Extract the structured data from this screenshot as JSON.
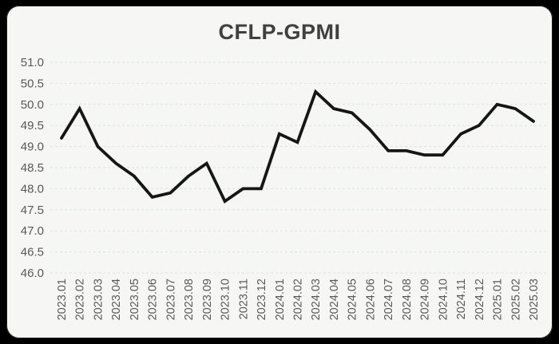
{
  "window": {
    "background_color": "#000000",
    "card_color": "#f6f6f4"
  },
  "chart_data": {
    "type": "line",
    "title": "CFLP-GPMI",
    "categories": [
      "2023.01",
      "2023.02",
      "2023.03",
      "2023.04",
      "2023.05",
      "2023.06",
      "2023.07",
      "2023.08",
      "2023.09",
      "2023.10",
      "2023.11",
      "2023.12",
      "2024.01",
      "2024.02",
      "2024.03",
      "2024.04",
      "2024.05",
      "2024.06",
      "2024.07",
      "2024.08",
      "2024.09",
      "2024.10",
      "2024.11",
      "2024.12",
      "2025.01",
      "2025.02",
      "2025.03"
    ],
    "values": [
      49.2,
      49.9,
      49.0,
      48.6,
      48.3,
      47.8,
      47.9,
      48.3,
      48.6,
      47.7,
      48.0,
      48.0,
      49.3,
      49.1,
      50.3,
      49.9,
      49.8,
      49.4,
      48.9,
      48.9,
      48.8,
      48.8,
      49.3,
      49.5,
      50.0,
      49.9,
      49.6
    ],
    "series": [
      {
        "name": "CFLP-GPMI",
        "color": "#161616"
      }
    ],
    "xlabel": "",
    "ylabel": "",
    "ylim": [
      46.0,
      51.0
    ],
    "ytick_step": 0.5,
    "ytick_labels": [
      "51.0",
      "50.5",
      "50.0",
      "49.5",
      "49.0",
      "48.5",
      "48.0",
      "47.5",
      "47.0",
      "46.5",
      "46.0"
    ],
    "grid": "horizontal dashed",
    "gridline_color": "#d6e6e3",
    "tick_label_color": "#595959",
    "title_color": "#404040",
    "legend_position": "none",
    "x_labels_rotated_degrees": 90
  }
}
